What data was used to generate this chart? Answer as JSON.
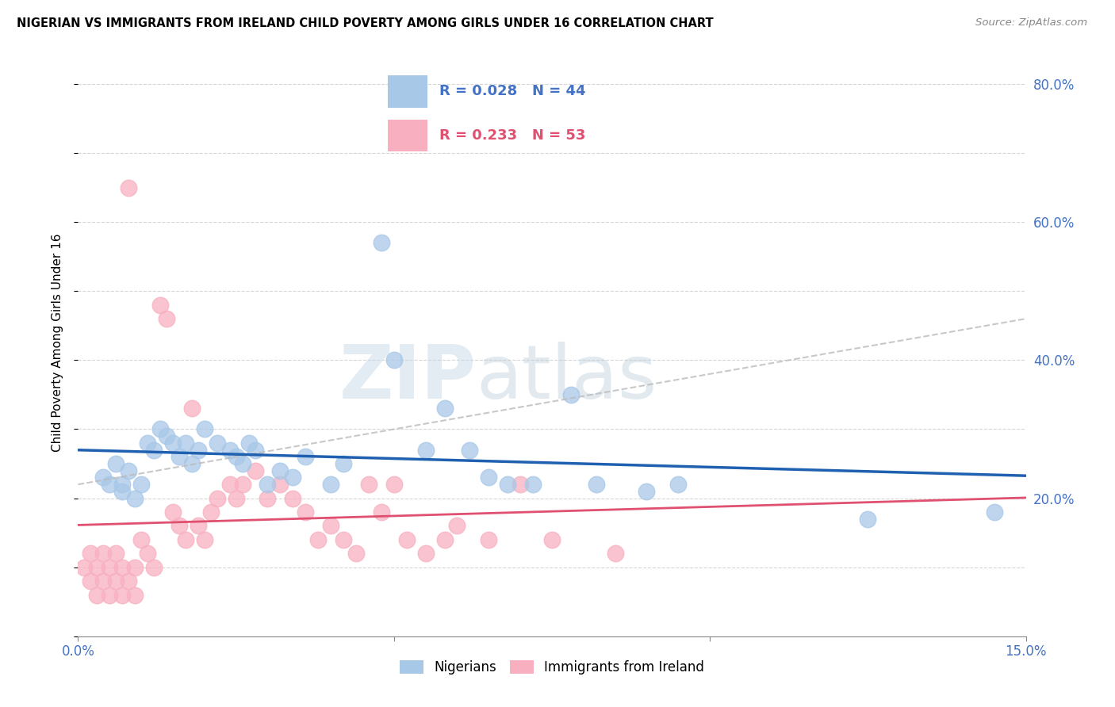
{
  "title": "NIGERIAN VS IMMIGRANTS FROM IRELAND CHILD POVERTY AMONG GIRLS UNDER 16 CORRELATION CHART",
  "source": "Source: ZipAtlas.com",
  "ylabel": "Child Poverty Among Girls Under 16",
  "x_min": 0.0,
  "x_max": 0.15,
  "y_min": 0.0,
  "y_max": 0.85,
  "yticks": [
    0.0,
    0.2,
    0.4,
    0.6,
    0.8
  ],
  "ytick_labels": [
    "",
    "20.0%",
    "40.0%",
    "60.0%",
    "80.0%"
  ],
  "xticks": [
    0.0,
    0.05,
    0.1,
    0.15
  ],
  "xtick_labels": [
    "0.0%",
    "",
    "",
    "15.0%"
  ],
  "group1_name": "Nigerians",
  "group1_color": "#a8c8e8",
  "group1_R": 0.028,
  "group1_N": 44,
  "group1_line_color": "#2060b0",
  "group2_name": "Immigrants from Ireland",
  "group2_color": "#f8b0c0",
  "group2_R": 0.233,
  "group2_N": 53,
  "group2_line_color": "#e05070",
  "grid_color": "#cccccc",
  "background_color": "#ffffff",
  "watermark_part1": "ZIP",
  "watermark_part2": "atlas",
  "nigerians_x": [
    0.004,
    0.005,
    0.006,
    0.007,
    0.007,
    0.008,
    0.009,
    0.01,
    0.011,
    0.012,
    0.013,
    0.014,
    0.015,
    0.016,
    0.017,
    0.018,
    0.019,
    0.02,
    0.022,
    0.024,
    0.025,
    0.026,
    0.027,
    0.028,
    0.03,
    0.032,
    0.034,
    0.036,
    0.04,
    0.042,
    0.048,
    0.05,
    0.055,
    0.058,
    0.062,
    0.065,
    0.068,
    0.072,
    0.078,
    0.082,
    0.09,
    0.095,
    0.125,
    0.145
  ],
  "nigerians_y": [
    0.23,
    0.22,
    0.25,
    0.21,
    0.22,
    0.24,
    0.2,
    0.22,
    0.28,
    0.27,
    0.3,
    0.29,
    0.28,
    0.26,
    0.28,
    0.25,
    0.27,
    0.3,
    0.28,
    0.27,
    0.26,
    0.25,
    0.28,
    0.27,
    0.22,
    0.24,
    0.23,
    0.26,
    0.22,
    0.25,
    0.57,
    0.4,
    0.27,
    0.33,
    0.27,
    0.23,
    0.22,
    0.22,
    0.35,
    0.22,
    0.21,
    0.22,
    0.17,
    0.18
  ],
  "ireland_x": [
    0.001,
    0.002,
    0.002,
    0.003,
    0.003,
    0.004,
    0.004,
    0.005,
    0.005,
    0.006,
    0.006,
    0.007,
    0.007,
    0.008,
    0.008,
    0.009,
    0.009,
    0.01,
    0.011,
    0.012,
    0.013,
    0.014,
    0.015,
    0.016,
    0.017,
    0.018,
    0.019,
    0.02,
    0.021,
    0.022,
    0.024,
    0.025,
    0.026,
    0.028,
    0.03,
    0.032,
    0.034,
    0.036,
    0.038,
    0.04,
    0.042,
    0.044,
    0.046,
    0.048,
    0.05,
    0.052,
    0.055,
    0.058,
    0.06,
    0.065,
    0.07,
    0.075,
    0.085
  ],
  "ireland_y": [
    0.1,
    0.08,
    0.12,
    0.06,
    0.1,
    0.08,
    0.12,
    0.06,
    0.1,
    0.08,
    0.12,
    0.06,
    0.1,
    0.08,
    0.65,
    0.06,
    0.1,
    0.14,
    0.12,
    0.1,
    0.48,
    0.46,
    0.18,
    0.16,
    0.14,
    0.33,
    0.16,
    0.14,
    0.18,
    0.2,
    0.22,
    0.2,
    0.22,
    0.24,
    0.2,
    0.22,
    0.2,
    0.18,
    0.14,
    0.16,
    0.14,
    0.12,
    0.22,
    0.18,
    0.22,
    0.14,
    0.12,
    0.14,
    0.16,
    0.14,
    0.22,
    0.14,
    0.12
  ]
}
